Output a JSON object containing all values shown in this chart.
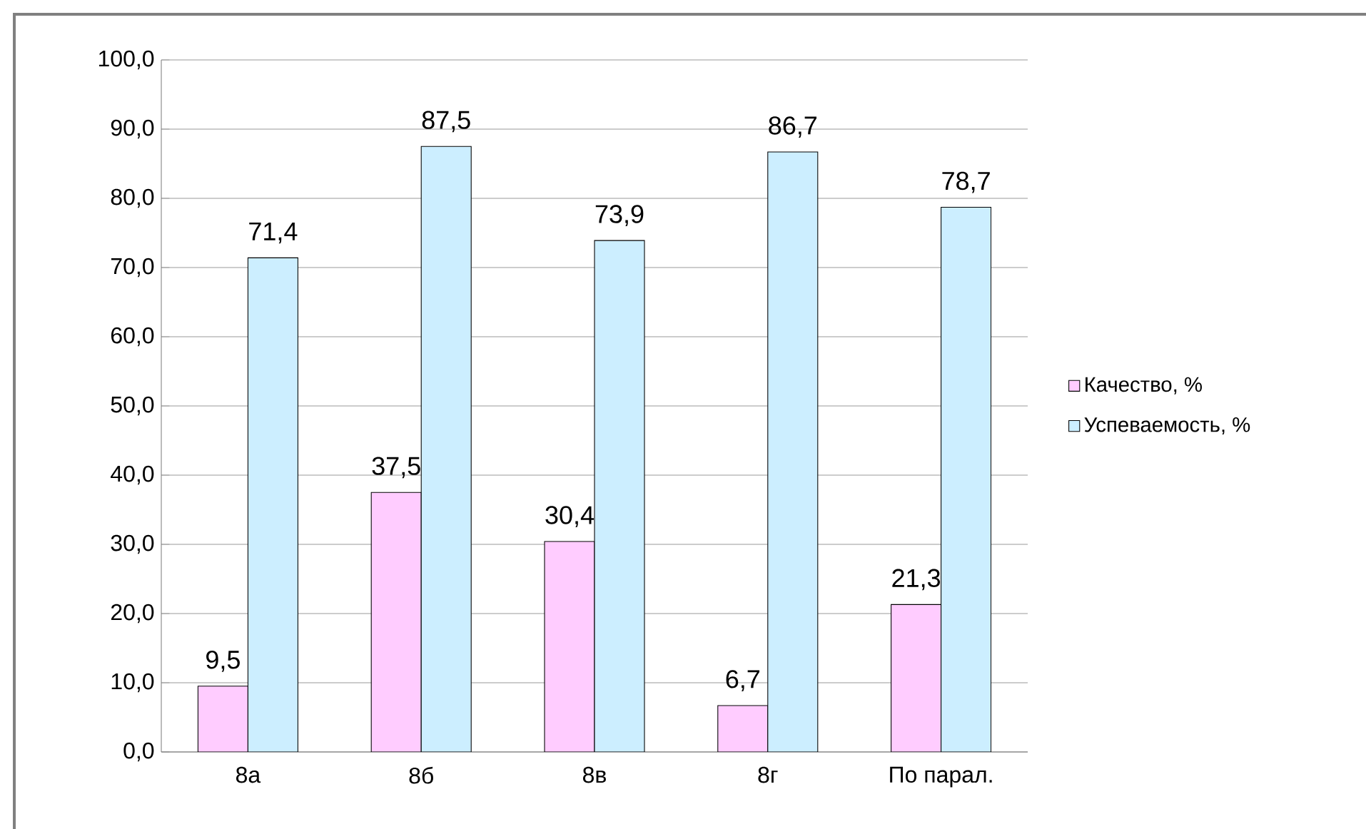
{
  "chart_data": {
    "type": "bar",
    "categories": [
      "8а",
      "8б",
      "8в",
      "8г",
      "По парал."
    ],
    "series": [
      {
        "name": "Качество, %",
        "color": "#ffccff",
        "values": [
          9.5,
          37.5,
          30.4,
          6.7,
          21.3
        ],
        "value_labels": [
          "9,5",
          "37,5",
          "30,4",
          "6,7",
          "21,3"
        ]
      },
      {
        "name": "Успеваемость, %",
        "color": "#cceeff",
        "values": [
          71.4,
          87.5,
          73.9,
          86.7,
          78.7
        ],
        "value_labels": [
          "71,4",
          "87,5",
          "73,9",
          "86,7",
          "78,7"
        ]
      }
    ],
    "ylim": [
      0,
      100
    ],
    "yticks": [
      {
        "value": 0,
        "label": "0,0"
      },
      {
        "value": 10,
        "label": "10,0"
      },
      {
        "value": 20,
        "label": "20,0"
      },
      {
        "value": 30,
        "label": "30,0"
      },
      {
        "value": 40,
        "label": "40,0"
      },
      {
        "value": 50,
        "label": "50,0"
      },
      {
        "value": 60,
        "label": "60,0"
      },
      {
        "value": 70,
        "label": "70,0"
      },
      {
        "value": 80,
        "label": "80,0"
      },
      {
        "value": 90,
        "label": "90,0"
      },
      {
        "value": 100,
        "label": "100,0"
      }
    ],
    "grid": "y",
    "legend": "right"
  }
}
